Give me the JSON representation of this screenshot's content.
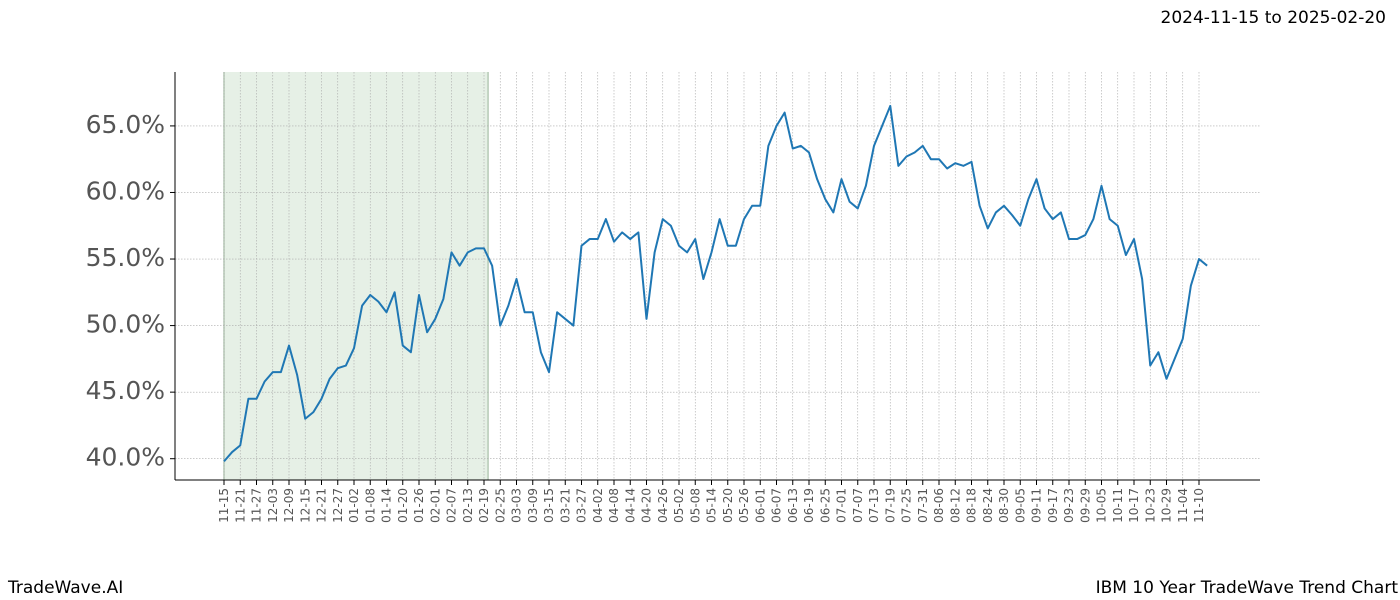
{
  "chart_data": {
    "type": "line",
    "title": "2024-11-15 to 2025-02-20",
    "footer_left": "TradeWave.AI",
    "footer_right": "IBM 10 Year TradeWave Trend Chart",
    "categories": [
      "11-15",
      null,
      "11-21",
      null,
      "11-27",
      null,
      "12-03",
      null,
      "12-09",
      null,
      "12-15",
      null,
      "12-21",
      null,
      "12-27",
      null,
      "01-02",
      null,
      "01-08",
      null,
      "01-14",
      null,
      "01-20",
      null,
      "01-26",
      null,
      "02-01",
      null,
      "02-07",
      null,
      "02-13",
      null,
      "02-19",
      null,
      "02-25",
      null,
      "03-03",
      null,
      "03-09",
      null,
      "03-15",
      null,
      "03-21",
      null,
      "03-27",
      null,
      "04-02",
      null,
      "04-08",
      null,
      "04-14",
      null,
      "04-20",
      null,
      "04-26",
      null,
      "05-02",
      null,
      "05-08",
      null,
      "05-14",
      null,
      "05-20",
      null,
      "05-26",
      null,
      "06-01",
      null,
      "06-07",
      null,
      "06-13",
      null,
      "06-19",
      null,
      "06-25",
      null,
      "07-01",
      null,
      "07-07",
      null,
      "07-13",
      null,
      "07-19",
      null,
      "07-25",
      null,
      "07-31",
      null,
      "08-06",
      null,
      "08-12",
      null,
      "08-18",
      null,
      "08-24",
      null,
      "08-30",
      null,
      "09-05",
      null,
      "09-11",
      null,
      "09-17",
      null,
      "09-23",
      null,
      "09-29",
      null,
      "10-05",
      null,
      "10-11",
      null,
      "10-17",
      null,
      "10-23",
      null,
      "10-29",
      null,
      "11-04",
      null,
      "11-10",
      null
    ],
    "series": [
      {
        "color": "#1f77b4",
        "values": [
          39.8,
          40.5,
          41,
          44.5,
          44.5,
          45.8,
          46.5,
          46.5,
          48.5,
          46.3,
          43,
          43.5,
          44.5,
          46,
          46.8,
          47,
          48.3,
          51.5,
          52.3,
          51.8,
          51,
          52.5,
          48.5,
          48,
          52.3,
          49.5,
          50.5,
          52,
          55.5,
          54.5,
          55.5,
          55.8,
          55.8,
          54.5,
          50,
          51.5,
          53.5,
          51,
          51,
          48,
          46.5,
          51,
          50.5,
          50,
          56,
          56.5,
          56.5,
          58,
          56.3,
          57,
          56.5,
          57,
          50.5,
          55.5,
          58,
          57.5,
          56,
          55.5,
          56.5,
          53.5,
          55.5,
          58,
          56,
          56,
          58,
          59,
          59,
          63.5,
          65,
          66,
          63.3,
          63.5,
          63,
          61,
          59.5,
          58.5,
          61,
          59.3,
          58.8,
          60.5,
          63.5,
          65,
          66.5,
          62,
          62.7,
          63,
          63.5,
          62.5,
          62.5,
          61.8,
          62.2,
          62,
          62.3,
          59,
          57.3,
          58.5,
          59,
          58.3,
          57.5,
          59.5,
          61,
          58.8,
          58,
          58.5,
          56.5,
          56.5,
          56.8,
          58,
          60.5,
          58,
          57.5,
          55.3,
          56.5,
          53.5,
          47,
          48,
          46,
          47.5,
          49,
          53,
          55,
          54.5
        ]
      }
    ],
    "shaded_range": [
      0,
      32.5
    ],
    "shade_color": "#e6f0e6",
    "ylim": [
      38.4,
      69.05
    ],
    "yticks": [
      {
        "value": 40,
        "label": "40.0%"
      },
      {
        "value": 45,
        "label": "45.0%"
      },
      {
        "value": 50,
        "label": "50.0%"
      },
      {
        "value": 55,
        "label": "55.0%"
      },
      {
        "value": 60,
        "label": "60.0%"
      },
      {
        "value": 65,
        "label": "65.0%"
      }
    ],
    "grid": true
  }
}
